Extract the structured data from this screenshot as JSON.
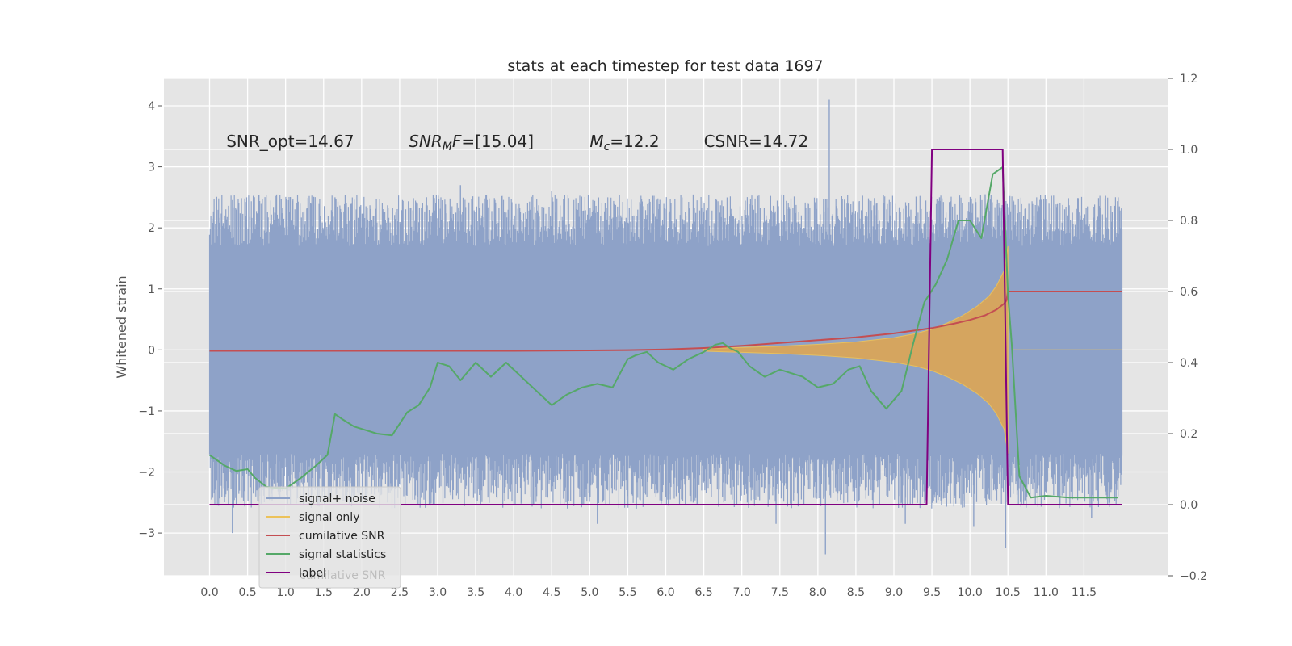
{
  "chart_data": {
    "type": "line",
    "title": "stats at each timestep for test data 1697",
    "ylabel": "Whitened strain",
    "xlim": [
      -0.6,
      12.6
    ],
    "ylim": [
      -3.7,
      4.45
    ],
    "y2lim": [
      -0.2,
      1.2
    ],
    "grid": true,
    "legend_position": "lower-left",
    "x_ticks": [
      "0.0",
      "0.5",
      "1.0",
      "1.5",
      "2.0",
      "2.5",
      "3.0",
      "3.5",
      "4.0",
      "4.5",
      "5.0",
      "5.5",
      "6.0",
      "6.5",
      "7.0",
      "7.5",
      "8.0",
      "8.5",
      "9.0",
      "9.5",
      "10.0",
      "10.5",
      "11.0",
      "11.5"
    ],
    "y_ticks": [
      "−3",
      "−2",
      "−1",
      "0",
      "1",
      "2",
      "3",
      "4"
    ],
    "y2_ticks": [
      "−0.2",
      "0.0",
      "0.2",
      "0.4",
      "0.6",
      "0.8",
      "1.0",
      "1.2"
    ],
    "annotations": [
      {
        "text": "SNR_opt=14.67",
        "x": 0.22,
        "y": 3.42
      },
      {
        "text": "SNR",
        "sub": "M",
        "suffix": "F=[15.04]",
        "italic": true,
        "x": 2.62,
        "y": 3.42
      },
      {
        "text": "M",
        "sub": "c",
        "suffix": "=12.2",
        "italic": true,
        "x": 5.0,
        "y": 3.42
      },
      {
        "text": "CSNR=14.72",
        "x": 6.5,
        "y": 3.42
      }
    ],
    "legend": [
      {
        "label": "signal+ noise",
        "color": "#8ea2c8"
      },
      {
        "label": "signal only",
        "color": "#ecc25a"
      },
      {
        "label": "cumilative SNR",
        "color": "#c44e52"
      },
      {
        "label": "signal statistics",
        "color": "#55a868"
      },
      {
        "label": "label",
        "color": "#800080"
      }
    ],
    "legend_ghost": "cumilative SNR",
    "series": [
      {
        "name": "signal+ noise",
        "axis": "left",
        "color": "#8ea2c8",
        "x_range": [
          0.0,
          12.0
        ],
        "band_low": -1.7,
        "band_high": 1.7,
        "spikes": [
          [
            0.3,
            -3.0
          ],
          [
            0.05,
            2.15
          ],
          [
            0.35,
            2.3
          ],
          [
            1.65,
            2.5
          ],
          [
            3.3,
            2.7
          ],
          [
            4.5,
            2.6
          ],
          [
            6.0,
            1.4
          ],
          [
            6.0,
            -0.4
          ],
          [
            8.15,
            4.1
          ],
          [
            8.1,
            -3.35
          ],
          [
            7.45,
            -2.85
          ],
          [
            5.1,
            -2.85
          ],
          [
            11.6,
            -2.75
          ],
          [
            10.47,
            -3.25
          ],
          [
            10.05,
            -2.9
          ],
          [
            9.15,
            -2.85
          ],
          [
            2.9,
            -2.55
          ],
          [
            9.6,
            2.5
          ],
          [
            10.2,
            2.55
          ],
          [
            11.95,
            2.5
          ]
        ]
      },
      {
        "name": "signal only",
        "axis": "left",
        "color": "#ecc25a",
        "envelope_x": [
          6.5,
          7.0,
          7.5,
          8.0,
          8.5,
          9.0,
          9.3,
          9.5,
          9.7,
          9.9,
          10.1,
          10.25,
          10.35,
          10.45,
          10.5
        ],
        "envelope_amp": [
          0.02,
          0.04,
          0.06,
          0.09,
          0.13,
          0.2,
          0.27,
          0.34,
          0.44,
          0.56,
          0.72,
          0.88,
          1.05,
          1.3,
          1.7
        ],
        "flat_after": [
          10.55,
          12.0,
          0.0
        ]
      },
      {
        "name": "cumilative SNR",
        "axis": "right",
        "color": "#c44e52",
        "x": [
          0.0,
          1.0,
          2.0,
          3.0,
          4.0,
          5.0,
          5.5,
          6.0,
          6.5,
          7.0,
          7.5,
          8.0,
          8.5,
          9.0,
          9.5,
          9.8,
          10.0,
          10.2,
          10.35,
          10.45,
          10.48,
          10.5,
          11.0,
          11.5,
          12.0
        ],
        "y": [
          0.433,
          0.433,
          0.433,
          0.433,
          0.433,
          0.434,
          0.435,
          0.437,
          0.441,
          0.447,
          0.455,
          0.463,
          0.471,
          0.482,
          0.497,
          0.51,
          0.52,
          0.533,
          0.549,
          0.566,
          0.575,
          0.6,
          0.6,
          0.6,
          0.6
        ]
      },
      {
        "name": "signal statistics",
        "axis": "right",
        "color": "#55a868",
        "x": [
          0.0,
          0.1,
          0.2,
          0.35,
          0.5,
          0.6,
          0.75,
          1.0,
          1.2,
          1.4,
          1.55,
          1.65,
          1.75,
          1.9,
          2.05,
          2.2,
          2.4,
          2.6,
          2.75,
          2.9,
          3.0,
          3.15,
          3.3,
          3.5,
          3.7,
          3.9,
          4.1,
          4.3,
          4.5,
          4.7,
          4.9,
          5.1,
          5.3,
          5.5,
          5.6,
          5.75,
          5.9,
          6.1,
          6.3,
          6.5,
          6.65,
          6.75,
          6.85,
          6.95,
          7.1,
          7.3,
          7.5,
          7.8,
          8.0,
          8.2,
          8.4,
          8.55,
          8.7,
          8.9,
          9.1,
          9.25,
          9.4,
          9.55,
          9.7,
          9.85,
          10.0,
          10.15,
          10.3,
          10.43,
          10.5,
          10.55,
          10.65,
          10.8,
          11.0,
          11.3,
          11.6,
          11.8,
          11.95
        ],
        "y": [
          0.14,
          0.125,
          0.11,
          0.095,
          0.1,
          0.075,
          0.05,
          0.045,
          0.075,
          0.11,
          0.14,
          0.255,
          0.24,
          0.22,
          0.21,
          0.2,
          0.195,
          0.26,
          0.28,
          0.33,
          0.4,
          0.39,
          0.35,
          0.4,
          0.36,
          0.4,
          0.36,
          0.32,
          0.28,
          0.31,
          0.33,
          0.34,
          0.33,
          0.41,
          0.42,
          0.43,
          0.4,
          0.38,
          0.41,
          0.43,
          0.45,
          0.455,
          0.44,
          0.43,
          0.39,
          0.36,
          0.38,
          0.36,
          0.33,
          0.34,
          0.38,
          0.39,
          0.32,
          0.27,
          0.32,
          0.45,
          0.57,
          0.62,
          0.69,
          0.8,
          0.8,
          0.75,
          0.93,
          0.95,
          0.59,
          0.45,
          0.08,
          0.02,
          0.025,
          0.02,
          0.02,
          0.02,
          0.02
        ]
      },
      {
        "name": "label",
        "axis": "right",
        "color": "#800080",
        "x": [
          0.0,
          9.43,
          9.5,
          10.43,
          10.5,
          12.0
        ],
        "y": [
          0.0,
          0.0,
          1.0,
          1.0,
          0.0,
          0.0
        ]
      }
    ]
  }
}
